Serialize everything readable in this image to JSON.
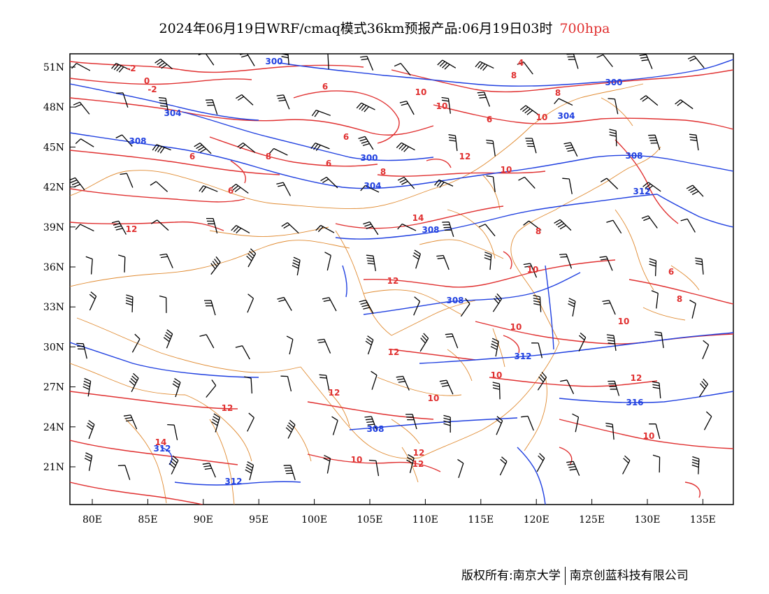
{
  "title": {
    "main": "2024年06月19日WRF/cmaq模式36km预报产品:06月19日03时",
    "level": "700hpa"
  },
  "colors": {
    "temperature_contour": "#e03030",
    "height_contour": "#2040e0",
    "boundary": "#e08a30",
    "wind_barb": "#000000"
  },
  "axes": {
    "lat_ticks": [
      "51N",
      "48N",
      "45N",
      "42N",
      "39N",
      "36N",
      "33N",
      "30N",
      "27N",
      "24N",
      "21N"
    ],
    "lon_ticks": [
      "80E",
      "85E",
      "90E",
      "95E",
      "100E",
      "105E",
      "110E",
      "115E",
      "120E",
      "125E",
      "130E",
      "135E"
    ]
  },
  "temperature_labels": [
    "-2",
    "0",
    "-2",
    "4",
    "6",
    "6",
    "8",
    "10",
    "6",
    "8",
    "6",
    "10",
    "6",
    "8",
    "6",
    "8",
    "12",
    "10",
    "10",
    "12",
    "14",
    "8",
    "12",
    "10",
    "6",
    "8",
    "10",
    "10",
    "10",
    "12",
    "12",
    "10",
    "12",
    "10",
    "12",
    "12",
    "14",
    "12",
    "10"
  ],
  "height_labels": [
    "300",
    "304",
    "308",
    "300",
    "304",
    "308",
    "308",
    "300",
    "304",
    "308",
    "312",
    "312",
    "312",
    "316",
    "308",
    "312"
  ],
  "footer": {
    "left": "版权所有:南京大学",
    "right": "南京创蓝科技有限公司"
  }
}
